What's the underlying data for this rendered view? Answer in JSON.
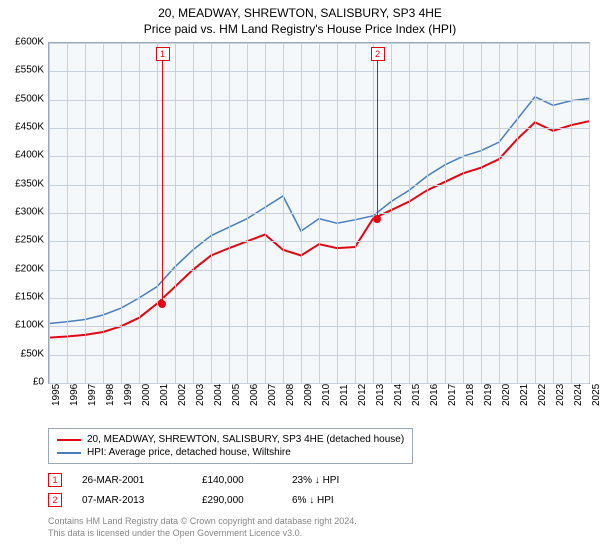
{
  "title": "20, MEADWAY, SHREWTON, SALISBURY, SP3 4HE",
  "subtitle": "Price paid vs. HM Land Registry's House Price Index (HPI)",
  "chart": {
    "type": "line",
    "background_color": "#f5f8fb",
    "grid_color": "#c8d0da",
    "border_color": "#9aa8b8",
    "x_years": [
      1995,
      1996,
      1997,
      1998,
      1999,
      2000,
      2001,
      2002,
      2003,
      2004,
      2005,
      2006,
      2007,
      2008,
      2009,
      2010,
      2011,
      2012,
      2013,
      2014,
      2015,
      2016,
      2017,
      2018,
      2019,
      2020,
      2021,
      2022,
      2023,
      2024,
      2025
    ],
    "y_ticks": [
      0,
      50000,
      100000,
      150000,
      200000,
      250000,
      300000,
      350000,
      400000,
      450000,
      500000,
      550000,
      600000
    ],
    "y_tick_labels": [
      "£0",
      "£50K",
      "£100K",
      "£150K",
      "£200K",
      "£250K",
      "£300K",
      "£350K",
      "£400K",
      "£450K",
      "£500K",
      "£550K",
      "£600K"
    ],
    "ylim": [
      0,
      600000
    ],
    "xlim": [
      1995,
      2025
    ],
    "label_fontsize": 10,
    "series": [
      {
        "name": "20, MEADWAY, SHREWTON, SALISBURY, SP3 4HE (detached house)",
        "color": "#e30613",
        "width": 2,
        "data": [
          [
            1995,
            80000
          ],
          [
            1996,
            82000
          ],
          [
            1997,
            85000
          ],
          [
            1998,
            90000
          ],
          [
            1999,
            100000
          ],
          [
            2000,
            115000
          ],
          [
            2001,
            140000
          ],
          [
            2002,
            170000
          ],
          [
            2003,
            200000
          ],
          [
            2004,
            225000
          ],
          [
            2005,
            238000
          ],
          [
            2006,
            250000
          ],
          [
            2007,
            262000
          ],
          [
            2008,
            235000
          ],
          [
            2009,
            225000
          ],
          [
            2010,
            245000
          ],
          [
            2011,
            238000
          ],
          [
            2012,
            240000
          ],
          [
            2013,
            290000
          ],
          [
            2014,
            305000
          ],
          [
            2015,
            320000
          ],
          [
            2016,
            340000
          ],
          [
            2017,
            355000
          ],
          [
            2018,
            370000
          ],
          [
            2019,
            380000
          ],
          [
            2020,
            395000
          ],
          [
            2021,
            430000
          ],
          [
            2022,
            460000
          ],
          [
            2023,
            445000
          ],
          [
            2024,
            455000
          ],
          [
            2025,
            462000
          ]
        ]
      },
      {
        "name": "HPI: Average price, detached house, Wiltshire",
        "color": "#4a7ebb",
        "width": 1.5,
        "data": [
          [
            1995,
            105000
          ],
          [
            1996,
            108000
          ],
          [
            1997,
            112000
          ],
          [
            1998,
            120000
          ],
          [
            1999,
            132000
          ],
          [
            2000,
            150000
          ],
          [
            2001,
            170000
          ],
          [
            2002,
            205000
          ],
          [
            2003,
            235000
          ],
          [
            2004,
            260000
          ],
          [
            2005,
            275000
          ],
          [
            2006,
            290000
          ],
          [
            2007,
            310000
          ],
          [
            2008,
            330000
          ],
          [
            2009,
            268000
          ],
          [
            2010,
            290000
          ],
          [
            2011,
            282000
          ],
          [
            2012,
            288000
          ],
          [
            2013,
            295000
          ],
          [
            2014,
            320000
          ],
          [
            2015,
            340000
          ],
          [
            2016,
            365000
          ],
          [
            2017,
            385000
          ],
          [
            2018,
            400000
          ],
          [
            2019,
            410000
          ],
          [
            2020,
            425000
          ],
          [
            2021,
            465000
          ],
          [
            2022,
            505000
          ],
          [
            2023,
            490000
          ],
          [
            2024,
            498000
          ],
          [
            2025,
            502000
          ]
        ]
      }
    ],
    "markers": [
      {
        "num": "1",
        "year": 2001.25,
        "price": 140000
      },
      {
        "num": "2",
        "year": 2013.2,
        "price": 290000
      }
    ]
  },
  "legend": {
    "row1": "20, MEADWAY, SHREWTON, SALISBURY, SP3 4HE (detached house)",
    "row2": "HPI: Average price, detached house, Wiltshire"
  },
  "events": [
    {
      "num": "1",
      "date": "26-MAR-2001",
      "price": "£140,000",
      "hpi": "23% ↓ HPI"
    },
    {
      "num": "2",
      "date": "07-MAR-2013",
      "price": "£290,000",
      "hpi": "6% ↓ HPI"
    }
  ],
  "footer": {
    "line1": "Contains HM Land Registry data © Crown copyright and database right 2024.",
    "line2": "This data is licensed under the Open Government Licence v3.0."
  }
}
